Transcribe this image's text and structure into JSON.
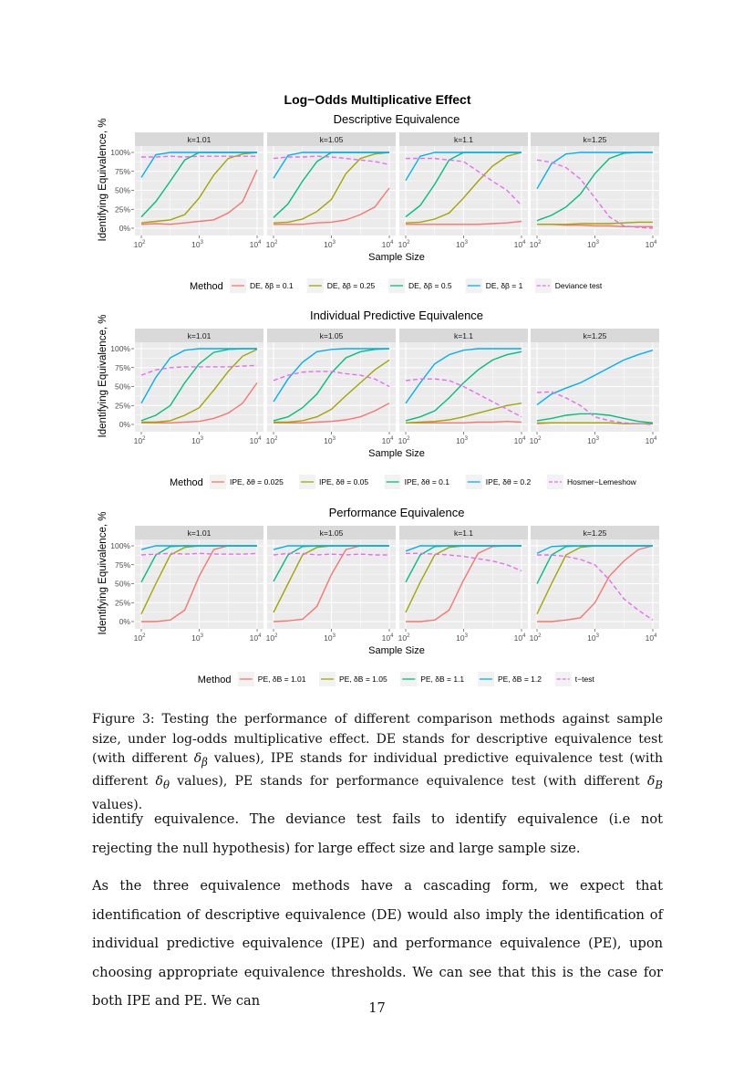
{
  "figure": {
    "title": "Log−Odds Multiplicative Effect",
    "ylabel": "Identifying Equivalence, %",
    "xlabel": "Sample Size",
    "yticks": [
      "0%",
      "25%",
      "50%",
      "75%",
      "100%"
    ],
    "xticks": [
      "10",
      "10",
      "10"
    ],
    "xtick_exp": [
      "2",
      "3",
      "4"
    ],
    "legend_title": "Method",
    "colors": [
      "#F8766D",
      "#A3A500",
      "#00BF7D",
      "#00B0F6",
      "#E76BF3"
    ]
  },
  "chart_data": [
    {
      "type": "line",
      "title": "Descriptive Equivalence",
      "facets": [
        "k=1.01",
        "k=1.05",
        "k=1.1",
        "k=1.25"
      ],
      "x_log10": [
        2,
        2.25,
        2.5,
        2.75,
        3,
        3.25,
        3.5,
        3.75,
        4
      ],
      "ylim": [
        0,
        100
      ],
      "legend": [
        "DE, δβ = 0.1",
        "DE, δβ = 0.25",
        "DE, δβ = 0.5",
        "DE, δβ = 1",
        "Deviance test"
      ],
      "panels": [
        [
          [
            5,
            6,
            5,
            7,
            9,
            11,
            20,
            35,
            77
          ],
          [
            7,
            9,
            11,
            18,
            40,
            70,
            92,
            98,
            100
          ],
          [
            15,
            35,
            62,
            90,
            100,
            100,
            100,
            100,
            100
          ],
          [
            67,
            97,
            100,
            100,
            100,
            100,
            100,
            100,
            100
          ],
          [
            94,
            94,
            95,
            94,
            95,
            95,
            95,
            95,
            95
          ]
        ],
        [
          [
            5,
            5,
            5,
            7,
            8,
            11,
            18,
            28,
            53
          ],
          [
            7,
            8,
            12,
            22,
            38,
            72,
            92,
            98,
            100
          ],
          [
            14,
            32,
            62,
            88,
            100,
            100,
            100,
            100,
            100
          ],
          [
            66,
            96,
            100,
            100,
            100,
            100,
            100,
            100,
            100
          ],
          [
            92,
            94,
            94,
            95,
            94,
            92,
            90,
            88,
            84
          ]
        ],
        [
          [
            5,
            5,
            5,
            5,
            5,
            5,
            6,
            7,
            9
          ],
          [
            7,
            8,
            12,
            20,
            40,
            62,
            82,
            95,
            100
          ],
          [
            15,
            30,
            58,
            90,
            100,
            100,
            100,
            100,
            100
          ],
          [
            63,
            95,
            100,
            100,
            100,
            100,
            100,
            100,
            100
          ],
          [
            92,
            92,
            92,
            90,
            88,
            75,
            62,
            50,
            30
          ]
        ],
        [
          [
            5,
            5,
            4,
            4,
            3,
            3,
            2,
            2,
            2
          ],
          [
            5,
            5,
            5,
            6,
            6,
            6,
            7,
            8,
            8
          ],
          [
            10,
            17,
            28,
            45,
            72,
            92,
            99,
            100,
            100
          ],
          [
            52,
            85,
            98,
            100,
            100,
            100,
            100,
            100,
            100
          ],
          [
            90,
            87,
            80,
            65,
            40,
            15,
            3,
            1,
            0
          ]
        ]
      ]
    },
    {
      "type": "line",
      "title": "Individual Predictive Equivalence",
      "facets": [
        "k=1.01",
        "k=1.05",
        "k=1.1",
        "k=1.25"
      ],
      "x_log10": [
        2,
        2.25,
        2.5,
        2.75,
        3,
        3.25,
        3.5,
        3.75,
        4
      ],
      "ylim": [
        0,
        100
      ],
      "legend": [
        "IPE, δθ = 0.025",
        "IPE, δθ = 0.05",
        "IPE, δθ = 0.1",
        "IPE, δθ = 0.2",
        "Hosmer−Lemeshow"
      ],
      "panels": [
        [
          [
            2,
            2,
            2,
            3,
            4,
            8,
            15,
            28,
            55
          ],
          [
            3,
            3,
            5,
            12,
            22,
            45,
            70,
            90,
            99
          ],
          [
            5,
            12,
            25,
            55,
            80,
            95,
            99,
            100,
            100
          ],
          [
            28,
            62,
            88,
            98,
            100,
            100,
            100,
            100,
            100
          ],
          [
            65,
            72,
            75,
            76,
            76,
            76,
            76,
            77,
            78
          ]
        ],
        [
          [
            2,
            2,
            2,
            3,
            4,
            6,
            10,
            18,
            28
          ],
          [
            3,
            3,
            5,
            10,
            20,
            38,
            55,
            72,
            85
          ],
          [
            5,
            10,
            22,
            40,
            68,
            88,
            96,
            99,
            100
          ],
          [
            30,
            60,
            82,
            96,
            99,
            100,
            100,
            100,
            100
          ],
          [
            58,
            65,
            69,
            70,
            70,
            67,
            65,
            60,
            50
          ]
        ],
        [
          [
            2,
            2,
            2,
            2,
            2,
            3,
            3,
            4,
            3
          ],
          [
            2,
            3,
            4,
            6,
            10,
            15,
            20,
            25,
            28
          ],
          [
            5,
            10,
            18,
            35,
            55,
            72,
            85,
            92,
            96
          ],
          [
            28,
            55,
            80,
            92,
            98,
            100,
            100,
            100,
            100
          ],
          [
            58,
            60,
            60,
            58,
            50,
            40,
            30,
            20,
            10
          ]
        ],
        [
          [
            1,
            2,
            2,
            2,
            2,
            2,
            1,
            1,
            1
          ],
          [
            2,
            2,
            2,
            2,
            2,
            2,
            1,
            1,
            1
          ],
          [
            5,
            8,
            12,
            14,
            14,
            12,
            8,
            4,
            2
          ],
          [
            26,
            40,
            48,
            55,
            65,
            75,
            85,
            92,
            98
          ],
          [
            42,
            43,
            35,
            25,
            10,
            5,
            2,
            1,
            0
          ]
        ]
      ]
    },
    {
      "type": "line",
      "title": "Performance Equivalence",
      "facets": [
        "k=1.01",
        "k=1.05",
        "k=1.1",
        "k=1.25"
      ],
      "x_log10": [
        2,
        2.25,
        2.5,
        2.75,
        3,
        3.25,
        3.5,
        3.75,
        4
      ],
      "ylim": [
        0,
        100
      ],
      "legend": [
        "PE, δB = 1.01",
        "PE, δB = 1.05",
        "PE, δB = 1.1",
        "PE, δB = 1.2",
        "t−test"
      ],
      "panels": [
        [
          [
            0,
            0,
            2,
            15,
            60,
            95,
            100,
            100,
            100
          ],
          [
            10,
            50,
            88,
            98,
            100,
            100,
            100,
            100,
            100
          ],
          [
            52,
            88,
            99,
            100,
            100,
            100,
            100,
            100,
            100
          ],
          [
            95,
            100,
            100,
            100,
            100,
            100,
            100,
            100,
            100
          ],
          [
            88,
            89,
            90,
            89,
            90,
            89,
            89,
            89,
            90
          ]
        ],
        [
          [
            0,
            1,
            3,
            20,
            62,
            95,
            100,
            100,
            100
          ],
          [
            12,
            50,
            88,
            98,
            100,
            100,
            100,
            100,
            100
          ],
          [
            53,
            88,
            99,
            100,
            100,
            100,
            100,
            100,
            100
          ],
          [
            95,
            100,
            100,
            100,
            100,
            100,
            100,
            100,
            100
          ],
          [
            88,
            90,
            90,
            88,
            89,
            88,
            89,
            88,
            88
          ]
        ],
        [
          [
            0,
            0,
            2,
            15,
            55,
            90,
            99,
            100,
            100
          ],
          [
            12,
            52,
            88,
            98,
            100,
            100,
            100,
            100,
            100
          ],
          [
            52,
            88,
            99,
            100,
            100,
            100,
            100,
            100,
            100
          ],
          [
            93,
            100,
            100,
            100,
            100,
            100,
            100,
            100,
            100
          ],
          [
            90,
            90,
            89,
            88,
            86,
            83,
            80,
            75,
            67
          ]
        ],
        [
          [
            0,
            0,
            2,
            5,
            25,
            60,
            80,
            95,
            100
          ],
          [
            10,
            50,
            88,
            98,
            100,
            100,
            100,
            100,
            100
          ],
          [
            50,
            88,
            99,
            100,
            100,
            100,
            100,
            100,
            100
          ],
          [
            90,
            99,
            100,
            100,
            100,
            100,
            100,
            100,
            100
          ],
          [
            88,
            88,
            86,
            82,
            75,
            55,
            30,
            15,
            2
          ]
        ]
      ]
    }
  ],
  "caption": {
    "a": "Figure 3: Testing the performance of different comparison methods against sample size, under log-odds multiplicative effect. DE stands for descriptive equivalence test (with different ",
    "m1": "δ",
    "m1s": "β",
    "b": " values), IPE stands for individual predictive equivalence test (with different ",
    "m2": "δ",
    "m2s": "θ",
    "c": " values), PE stands for performance equivalence test (with different ",
    "m3": "δ",
    "m3s": "B",
    "d": " values)."
  },
  "body": {
    "p1": "identify equivalence. The deviance test fails to identify equivalence (i.e not rejecting the null hypothesis) for large effect size and large sample size.",
    "p2": "As the three equivalence methods have a cascading form, we expect that identification of descriptive equivalence (DE) would also imply the identification of individual predictive equivalence (IPE) and performance equivalence (PE), upon choosing appropriate equivalence thresholds. We can see that this is the case for both IPE and PE. We can"
  },
  "page_number": "17"
}
